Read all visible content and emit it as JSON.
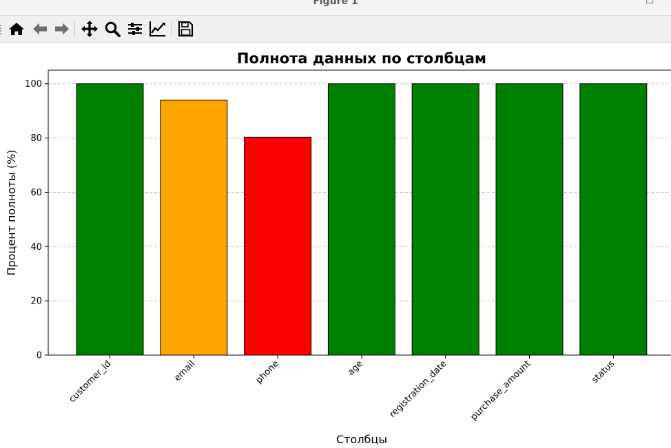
{
  "window": {
    "title": "Figure 1",
    "minimize": "–",
    "maximize": "□"
  },
  "toolbar": {
    "buttons": [
      {
        "name": "home-icon"
      },
      {
        "name": "back-icon"
      },
      {
        "name": "forward-icon"
      },
      {
        "name": "pan-icon"
      },
      {
        "name": "zoom-icon"
      },
      {
        "name": "subplots-icon"
      },
      {
        "name": "customize-icon"
      },
      {
        "name": "save-icon"
      }
    ]
  },
  "chart_data": {
    "type": "bar",
    "title": "Полнота данных по столбцам",
    "xlabel": "Столбцы",
    "ylabel": "Процент полноты (%)",
    "categories": [
      "customer_id",
      "email",
      "phone",
      "age",
      "registration_date",
      "purchase_amount",
      "status"
    ],
    "values": [
      100,
      94,
      80.3,
      100,
      100,
      100,
      100
    ],
    "colors": [
      "#008000",
      "#ffa500",
      "#ff0000",
      "#008000",
      "#008000",
      "#008000",
      "#008000"
    ],
    "ylim": [
      0,
      105
    ],
    "yticks": [
      0,
      20,
      40,
      60,
      80,
      100
    ],
    "grid": "y-dashed"
  }
}
